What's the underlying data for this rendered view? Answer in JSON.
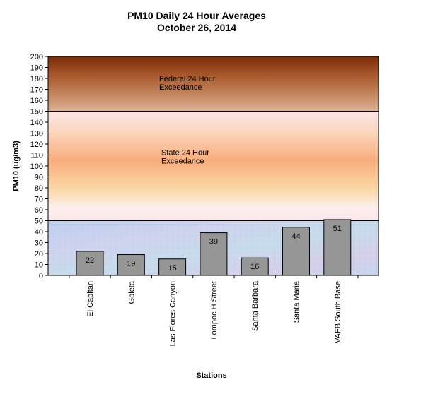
{
  "chart_data": {
    "type": "bar",
    "title": "PM10 Daily 24 Hour Averages",
    "subtitle": "October 26, 2014",
    "xlabel": "Stations",
    "ylabel": "PM10 (ug/m3)",
    "ylim": [
      0,
      200
    ],
    "ytick_step": 10,
    "categories": [
      "El Capitan",
      "Goleta",
      "Las Flores Canyon",
      "Lompoc H Street",
      "Santa Barbara",
      "Santa Maria",
      "VAFB South Base"
    ],
    "values": [
      22,
      19,
      15,
      39,
      16,
      44,
      51
    ],
    "bar_color": "#969696",
    "bands": [
      {
        "label": "State 24 Hour Exceedance",
        "label_lines": [
          "State 24 Hour",
          "Exceedance"
        ],
        "from": 50,
        "to": 150
      },
      {
        "label": "Federal 24 Hour Exceedance",
        "label_lines": [
          "Federal 24 Hour",
          "Exceedance"
        ],
        "from": 150,
        "to": 200
      }
    ],
    "grid": false,
    "legend": "none"
  }
}
